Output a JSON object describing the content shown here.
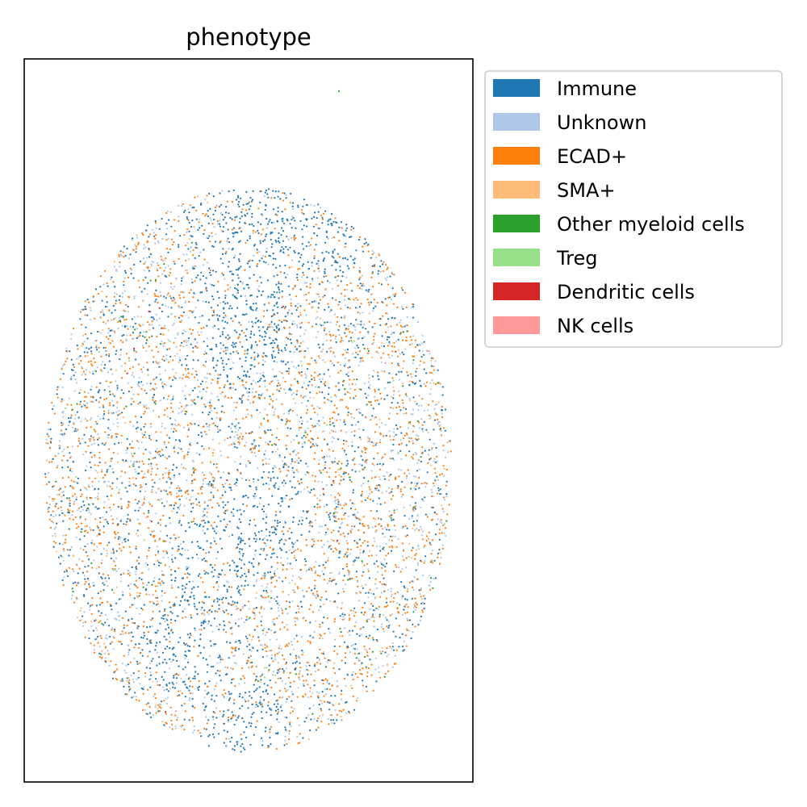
{
  "chart_data": {
    "type": "scatter",
    "title": "phenotype",
    "xlabel": "",
    "ylabel": "",
    "grid": false,
    "ticks": false,
    "legend_placement": "outside-upper-right",
    "series": [
      {
        "name": "Immune",
        "color": "#1f77b4"
      },
      {
        "name": "Unknown",
        "color": "#aec7e8"
      },
      {
        "name": "ECAD+",
        "color": "#ff7f0e"
      },
      {
        "name": "SMA+",
        "color": "#ffbb78"
      },
      {
        "name": "Other myeloid cells",
        "color": "#2ca02c"
      },
      {
        "name": "Treg",
        "color": "#98df8a"
      },
      {
        "name": "Dendritic cells",
        "color": "#d62728"
      },
      {
        "name": "NK cells",
        "color": "#ff9896"
      }
    ]
  }
}
